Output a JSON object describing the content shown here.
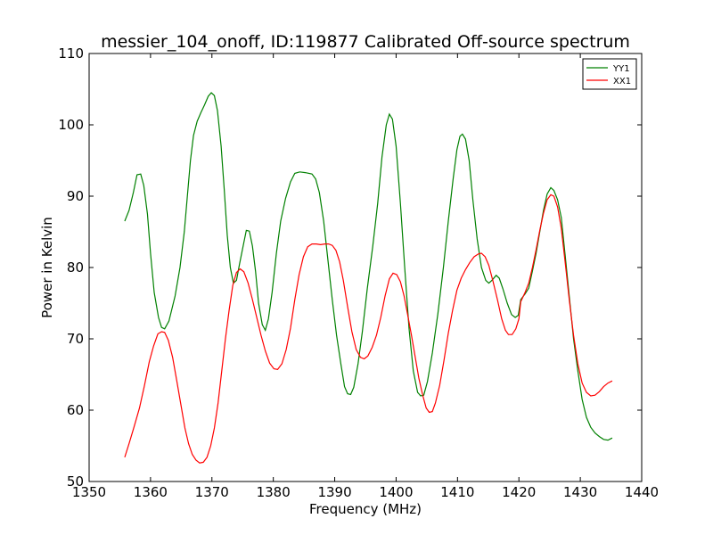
{
  "chart_data": {
    "type": "line",
    "title": "messier_104_onoff, ID:119877 Calibrated Off-source spectrum",
    "xlabel": "Frequency (MHz)",
    "ylabel": "Power in Kelvin",
    "xlim": [
      1350,
      1440
    ],
    "ylim": [
      50,
      110
    ],
    "xticks": [
      1350,
      1360,
      1370,
      1380,
      1390,
      1400,
      1410,
      1420,
      1430,
      1440
    ],
    "yticks": [
      50,
      60,
      70,
      80,
      90,
      100,
      110
    ],
    "grid": false,
    "legend_position": "top-right",
    "series": [
      {
        "name": "YY1",
        "color": "#008000",
        "points": [
          [
            1355.8,
            86.5
          ],
          [
            1356.5,
            88
          ],
          [
            1357.2,
            90.5
          ],
          [
            1357.8,
            93
          ],
          [
            1358.4,
            93.1
          ],
          [
            1358.9,
            91.5
          ],
          [
            1359.5,
            87.5
          ],
          [
            1360.0,
            82
          ],
          [
            1360.6,
            76.5
          ],
          [
            1361.3,
            73
          ],
          [
            1361.8,
            71.6
          ],
          [
            1362.3,
            71.4
          ],
          [
            1363.0,
            72.5
          ],
          [
            1364.0,
            76
          ],
          [
            1364.8,
            80
          ],
          [
            1365.5,
            85
          ],
          [
            1366.0,
            90
          ],
          [
            1366.5,
            95
          ],
          [
            1367.0,
            98.5
          ],
          [
            1367.6,
            100.5
          ],
          [
            1368.2,
            101.7
          ],
          [
            1368.8,
            102.8
          ],
          [
            1369.4,
            104
          ],
          [
            1369.9,
            104.5
          ],
          [
            1370.4,
            104.1
          ],
          [
            1370.9,
            102
          ],
          [
            1371.5,
            97
          ],
          [
            1372.0,
            91
          ],
          [
            1372.5,
            84.5
          ],
          [
            1373.0,
            80
          ],
          [
            1373.5,
            77.8
          ],
          [
            1374.0,
            78.2
          ],
          [
            1374.5,
            80.5
          ],
          [
            1375.2,
            83.5
          ],
          [
            1375.6,
            85.2
          ],
          [
            1376.1,
            85.1
          ],
          [
            1376.6,
            83
          ],
          [
            1377.1,
            79.5
          ],
          [
            1377.6,
            75
          ],
          [
            1378.2,
            72
          ],
          [
            1378.7,
            71.2
          ],
          [
            1379.2,
            72.8
          ],
          [
            1379.8,
            76.5
          ],
          [
            1380.5,
            82
          ],
          [
            1381.2,
            86.5
          ],
          [
            1382.0,
            89.7
          ],
          [
            1382.8,
            92
          ],
          [
            1383.5,
            93.2
          ],
          [
            1384.3,
            93.4
          ],
          [
            1385.2,
            93.3
          ],
          [
            1386.3,
            93.1
          ],
          [
            1386.9,
            92.4
          ],
          [
            1387.5,
            90.5
          ],
          [
            1388.2,
            86.5
          ],
          [
            1388.9,
            81
          ],
          [
            1389.6,
            75.5
          ],
          [
            1390.3,
            70.5
          ],
          [
            1391.0,
            66.5
          ],
          [
            1391.6,
            63.3
          ],
          [
            1392.1,
            62.3
          ],
          [
            1392.6,
            62.2
          ],
          [
            1393.1,
            63.2
          ],
          [
            1393.8,
            66.5
          ],
          [
            1394.5,
            71
          ],
          [
            1395.3,
            77
          ],
          [
            1396.2,
            83
          ],
          [
            1397.0,
            89
          ],
          [
            1397.7,
            95.5
          ],
          [
            1398.4,
            100
          ],
          [
            1398.9,
            101.5
          ],
          [
            1399.4,
            100.8
          ],
          [
            1400.0,
            97
          ],
          [
            1400.7,
            89
          ],
          [
            1401.4,
            80
          ],
          [
            1402.1,
            71.5
          ],
          [
            1402.8,
            65.5
          ],
          [
            1403.5,
            62.5
          ],
          [
            1404.0,
            62
          ],
          [
            1404.5,
            62.1
          ],
          [
            1405.1,
            64
          ],
          [
            1405.9,
            68
          ],
          [
            1406.8,
            73.5
          ],
          [
            1407.7,
            80
          ],
          [
            1408.5,
            86.5
          ],
          [
            1409.3,
            92.5
          ],
          [
            1409.9,
            96.5
          ],
          [
            1410.4,
            98.4
          ],
          [
            1410.8,
            98.7
          ],
          [
            1411.3,
            98
          ],
          [
            1411.9,
            95
          ],
          [
            1412.5,
            89.5
          ],
          [
            1413.2,
            84
          ],
          [
            1413.9,
            80
          ],
          [
            1414.6,
            78.2
          ],
          [
            1415.1,
            77.8
          ],
          [
            1415.6,
            78.2
          ],
          [
            1416.3,
            78.9
          ],
          [
            1416.8,
            78.5
          ],
          [
            1417.4,
            77
          ],
          [
            1418.1,
            75
          ],
          [
            1418.8,
            73.4
          ],
          [
            1419.4,
            73
          ],
          [
            1419.9,
            73.3
          ],
          [
            1420.3,
            75.5
          ],
          [
            1421.0,
            76.3
          ],
          [
            1421.6,
            77.1
          ],
          [
            1422.2,
            79.5
          ],
          [
            1422.8,
            82
          ],
          [
            1423.4,
            85
          ],
          [
            1424.0,
            88
          ],
          [
            1424.6,
            90.3
          ],
          [
            1425.2,
            91.2
          ],
          [
            1425.7,
            90.8
          ],
          [
            1426.3,
            89.5
          ],
          [
            1426.9,
            87
          ],
          [
            1427.5,
            82
          ],
          [
            1428.2,
            76
          ],
          [
            1428.9,
            70
          ],
          [
            1429.6,
            65.5
          ],
          [
            1430.3,
            61.5
          ],
          [
            1431.0,
            59
          ],
          [
            1431.7,
            57.6
          ],
          [
            1432.4,
            56.8
          ],
          [
            1433.1,
            56.3
          ],
          [
            1433.8,
            55.9
          ],
          [
            1434.5,
            55.8
          ],
          [
            1435.2,
            56.1
          ]
        ]
      },
      {
        "name": "XX1",
        "color": "#ff0000",
        "points": [
          [
            1355.8,
            53.4
          ],
          [
            1356.5,
            55.3
          ],
          [
            1357.3,
            57.6
          ],
          [
            1358.2,
            60.3
          ],
          [
            1359.0,
            63.4
          ],
          [
            1359.8,
            66.8
          ],
          [
            1360.5,
            69
          ],
          [
            1361.2,
            70.7
          ],
          [
            1361.8,
            71
          ],
          [
            1362.3,
            70.9
          ],
          [
            1362.9,
            69.8
          ],
          [
            1363.6,
            67.4
          ],
          [
            1364.3,
            64
          ],
          [
            1365.0,
            60.5
          ],
          [
            1365.6,
            57.5
          ],
          [
            1366.2,
            55.3
          ],
          [
            1366.8,
            53.8
          ],
          [
            1367.4,
            53
          ],
          [
            1368.0,
            52.6
          ],
          [
            1368.6,
            52.7
          ],
          [
            1369.2,
            53.4
          ],
          [
            1369.8,
            55
          ],
          [
            1370.4,
            57.5
          ],
          [
            1371.0,
            61
          ],
          [
            1371.6,
            65.5
          ],
          [
            1372.2,
            70
          ],
          [
            1372.8,
            74
          ],
          [
            1373.4,
            77.5
          ],
          [
            1374.0,
            79.3
          ],
          [
            1374.6,
            79.8
          ],
          [
            1375.2,
            79.4
          ],
          [
            1375.9,
            77.8
          ],
          [
            1376.6,
            75.5
          ],
          [
            1377.3,
            73
          ],
          [
            1378.0,
            70.5
          ],
          [
            1378.7,
            68.3
          ],
          [
            1379.4,
            66.6
          ],
          [
            1380.1,
            65.8
          ],
          [
            1380.7,
            65.7
          ],
          [
            1381.4,
            66.5
          ],
          [
            1382.1,
            68.5
          ],
          [
            1382.8,
            71.5
          ],
          [
            1383.5,
            75.5
          ],
          [
            1384.2,
            79
          ],
          [
            1384.9,
            81.5
          ],
          [
            1385.6,
            82.9
          ],
          [
            1386.3,
            83.3
          ],
          [
            1387.0,
            83.3
          ],
          [
            1387.7,
            83.2
          ],
          [
            1388.4,
            83.3
          ],
          [
            1389.0,
            83.3
          ],
          [
            1389.6,
            83.1
          ],
          [
            1390.2,
            82.4
          ],
          [
            1390.8,
            80.8
          ],
          [
            1391.4,
            78.2
          ],
          [
            1392.1,
            74.5
          ],
          [
            1392.8,
            71
          ],
          [
            1393.5,
            68.5
          ],
          [
            1394.2,
            67.4
          ],
          [
            1394.8,
            67.2
          ],
          [
            1395.4,
            67.6
          ],
          [
            1396.1,
            68.8
          ],
          [
            1396.8,
            70.5
          ],
          [
            1397.5,
            73
          ],
          [
            1398.2,
            76
          ],
          [
            1398.9,
            78.4
          ],
          [
            1399.5,
            79.2
          ],
          [
            1400.1,
            79
          ],
          [
            1400.7,
            78
          ],
          [
            1401.3,
            76
          ],
          [
            1401.9,
            73.3
          ],
          [
            1402.5,
            70.5
          ],
          [
            1403.1,
            67.5
          ],
          [
            1403.7,
            64.5
          ],
          [
            1404.3,
            62.2
          ],
          [
            1404.9,
            60.3
          ],
          [
            1405.4,
            59.7
          ],
          [
            1405.9,
            59.8
          ],
          [
            1406.4,
            61
          ],
          [
            1407.1,
            63.5
          ],
          [
            1407.8,
            67
          ],
          [
            1408.5,
            70.8
          ],
          [
            1409.2,
            74
          ],
          [
            1409.9,
            76.8
          ],
          [
            1410.6,
            78.5
          ],
          [
            1411.3,
            79.7
          ],
          [
            1412.0,
            80.7
          ],
          [
            1412.7,
            81.5
          ],
          [
            1413.4,
            81.9
          ],
          [
            1413.9,
            82
          ],
          [
            1414.5,
            81.5
          ],
          [
            1415.1,
            80.3
          ],
          [
            1415.8,
            78
          ],
          [
            1416.5,
            75.5
          ],
          [
            1417.2,
            72.8
          ],
          [
            1417.8,
            71.2
          ],
          [
            1418.3,
            70.6
          ],
          [
            1418.9,
            70.6
          ],
          [
            1419.5,
            71.4
          ],
          [
            1420.0,
            72.8
          ],
          [
            1420.3,
            75.2
          ],
          [
            1421.0,
            76.5
          ],
          [
            1421.6,
            77.8
          ],
          [
            1422.2,
            80
          ],
          [
            1422.8,
            82.5
          ],
          [
            1423.4,
            85.2
          ],
          [
            1424.0,
            87.6
          ],
          [
            1424.6,
            89.5
          ],
          [
            1425.2,
            90.2
          ],
          [
            1425.7,
            90
          ],
          [
            1426.3,
            88.5
          ],
          [
            1426.9,
            85.5
          ],
          [
            1427.5,
            81
          ],
          [
            1428.2,
            75.5
          ],
          [
            1428.9,
            70.5
          ],
          [
            1429.6,
            66.5
          ],
          [
            1430.3,
            63.8
          ],
          [
            1431.0,
            62.5
          ],
          [
            1431.7,
            62
          ],
          [
            1432.4,
            62.1
          ],
          [
            1433.1,
            62.6
          ],
          [
            1433.8,
            63.3
          ],
          [
            1434.5,
            63.8
          ],
          [
            1435.2,
            64.1
          ]
        ]
      }
    ]
  }
}
